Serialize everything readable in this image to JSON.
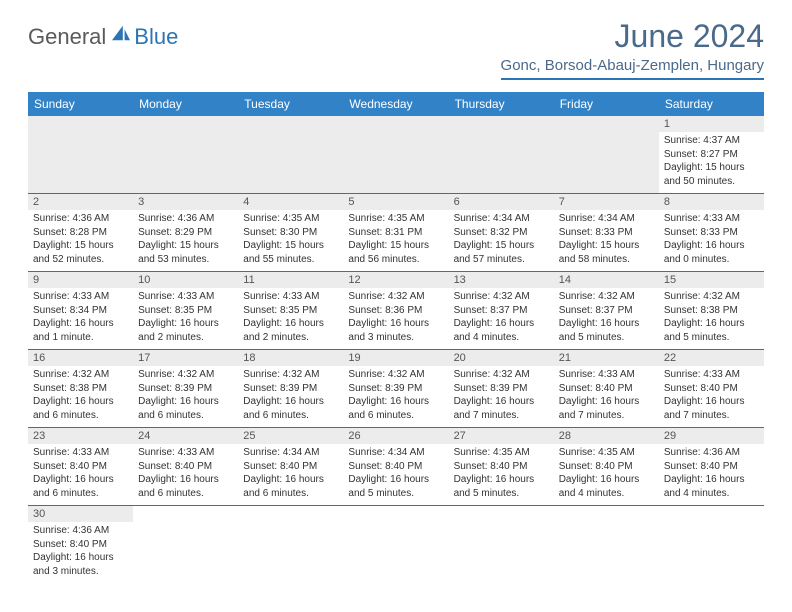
{
  "logo": {
    "general": "General",
    "blue": "Blue"
  },
  "title": "June 2024",
  "location": "Gonc, Borsod-Abauj-Zemplen, Hungary",
  "colors": {
    "header_bg": "#3282c7",
    "accent": "#2d74b5",
    "title_color": "#4a6a8a",
    "row_alt": "#ececec"
  },
  "weekdays": [
    "Sunday",
    "Monday",
    "Tuesday",
    "Wednesday",
    "Thursday",
    "Friday",
    "Saturday"
  ],
  "weeks": [
    [
      null,
      null,
      null,
      null,
      null,
      null,
      {
        "day": "1",
        "sunrise": "Sunrise: 4:37 AM",
        "sunset": "Sunset: 8:27 PM",
        "daylight": "Daylight: 15 hours and 50 minutes."
      }
    ],
    [
      {
        "day": "2",
        "sunrise": "Sunrise: 4:36 AM",
        "sunset": "Sunset: 8:28 PM",
        "daylight": "Daylight: 15 hours and 52 minutes."
      },
      {
        "day": "3",
        "sunrise": "Sunrise: 4:36 AM",
        "sunset": "Sunset: 8:29 PM",
        "daylight": "Daylight: 15 hours and 53 minutes."
      },
      {
        "day": "4",
        "sunrise": "Sunrise: 4:35 AM",
        "sunset": "Sunset: 8:30 PM",
        "daylight": "Daylight: 15 hours and 55 minutes."
      },
      {
        "day": "5",
        "sunrise": "Sunrise: 4:35 AM",
        "sunset": "Sunset: 8:31 PM",
        "daylight": "Daylight: 15 hours and 56 minutes."
      },
      {
        "day": "6",
        "sunrise": "Sunrise: 4:34 AM",
        "sunset": "Sunset: 8:32 PM",
        "daylight": "Daylight: 15 hours and 57 minutes."
      },
      {
        "day": "7",
        "sunrise": "Sunrise: 4:34 AM",
        "sunset": "Sunset: 8:33 PM",
        "daylight": "Daylight: 15 hours and 58 minutes."
      },
      {
        "day": "8",
        "sunrise": "Sunrise: 4:33 AM",
        "sunset": "Sunset: 8:33 PM",
        "daylight": "Daylight: 16 hours and 0 minutes."
      }
    ],
    [
      {
        "day": "9",
        "sunrise": "Sunrise: 4:33 AM",
        "sunset": "Sunset: 8:34 PM",
        "daylight": "Daylight: 16 hours and 1 minute."
      },
      {
        "day": "10",
        "sunrise": "Sunrise: 4:33 AM",
        "sunset": "Sunset: 8:35 PM",
        "daylight": "Daylight: 16 hours and 2 minutes."
      },
      {
        "day": "11",
        "sunrise": "Sunrise: 4:33 AM",
        "sunset": "Sunset: 8:35 PM",
        "daylight": "Daylight: 16 hours and 2 minutes."
      },
      {
        "day": "12",
        "sunrise": "Sunrise: 4:32 AM",
        "sunset": "Sunset: 8:36 PM",
        "daylight": "Daylight: 16 hours and 3 minutes."
      },
      {
        "day": "13",
        "sunrise": "Sunrise: 4:32 AM",
        "sunset": "Sunset: 8:37 PM",
        "daylight": "Daylight: 16 hours and 4 minutes."
      },
      {
        "day": "14",
        "sunrise": "Sunrise: 4:32 AM",
        "sunset": "Sunset: 8:37 PM",
        "daylight": "Daylight: 16 hours and 5 minutes."
      },
      {
        "day": "15",
        "sunrise": "Sunrise: 4:32 AM",
        "sunset": "Sunset: 8:38 PM",
        "daylight": "Daylight: 16 hours and 5 minutes."
      }
    ],
    [
      {
        "day": "16",
        "sunrise": "Sunrise: 4:32 AM",
        "sunset": "Sunset: 8:38 PM",
        "daylight": "Daylight: 16 hours and 6 minutes."
      },
      {
        "day": "17",
        "sunrise": "Sunrise: 4:32 AM",
        "sunset": "Sunset: 8:39 PM",
        "daylight": "Daylight: 16 hours and 6 minutes."
      },
      {
        "day": "18",
        "sunrise": "Sunrise: 4:32 AM",
        "sunset": "Sunset: 8:39 PM",
        "daylight": "Daylight: 16 hours and 6 minutes."
      },
      {
        "day": "19",
        "sunrise": "Sunrise: 4:32 AM",
        "sunset": "Sunset: 8:39 PM",
        "daylight": "Daylight: 16 hours and 6 minutes."
      },
      {
        "day": "20",
        "sunrise": "Sunrise: 4:32 AM",
        "sunset": "Sunset: 8:39 PM",
        "daylight": "Daylight: 16 hours and 7 minutes."
      },
      {
        "day": "21",
        "sunrise": "Sunrise: 4:33 AM",
        "sunset": "Sunset: 8:40 PM",
        "daylight": "Daylight: 16 hours and 7 minutes."
      },
      {
        "day": "22",
        "sunrise": "Sunrise: 4:33 AM",
        "sunset": "Sunset: 8:40 PM",
        "daylight": "Daylight: 16 hours and 7 minutes."
      }
    ],
    [
      {
        "day": "23",
        "sunrise": "Sunrise: 4:33 AM",
        "sunset": "Sunset: 8:40 PM",
        "daylight": "Daylight: 16 hours and 6 minutes."
      },
      {
        "day": "24",
        "sunrise": "Sunrise: 4:33 AM",
        "sunset": "Sunset: 8:40 PM",
        "daylight": "Daylight: 16 hours and 6 minutes."
      },
      {
        "day": "25",
        "sunrise": "Sunrise: 4:34 AM",
        "sunset": "Sunset: 8:40 PM",
        "daylight": "Daylight: 16 hours and 6 minutes."
      },
      {
        "day": "26",
        "sunrise": "Sunrise: 4:34 AM",
        "sunset": "Sunset: 8:40 PM",
        "daylight": "Daylight: 16 hours and 5 minutes."
      },
      {
        "day": "27",
        "sunrise": "Sunrise: 4:35 AM",
        "sunset": "Sunset: 8:40 PM",
        "daylight": "Daylight: 16 hours and 5 minutes."
      },
      {
        "day": "28",
        "sunrise": "Sunrise: 4:35 AM",
        "sunset": "Sunset: 8:40 PM",
        "daylight": "Daylight: 16 hours and 4 minutes."
      },
      {
        "day": "29",
        "sunrise": "Sunrise: 4:36 AM",
        "sunset": "Sunset: 8:40 PM",
        "daylight": "Daylight: 16 hours and 4 minutes."
      }
    ],
    [
      {
        "day": "30",
        "sunrise": "Sunrise: 4:36 AM",
        "sunset": "Sunset: 8:40 PM",
        "daylight": "Daylight: 16 hours and 3 minutes."
      },
      null,
      null,
      null,
      null,
      null,
      null
    ]
  ]
}
